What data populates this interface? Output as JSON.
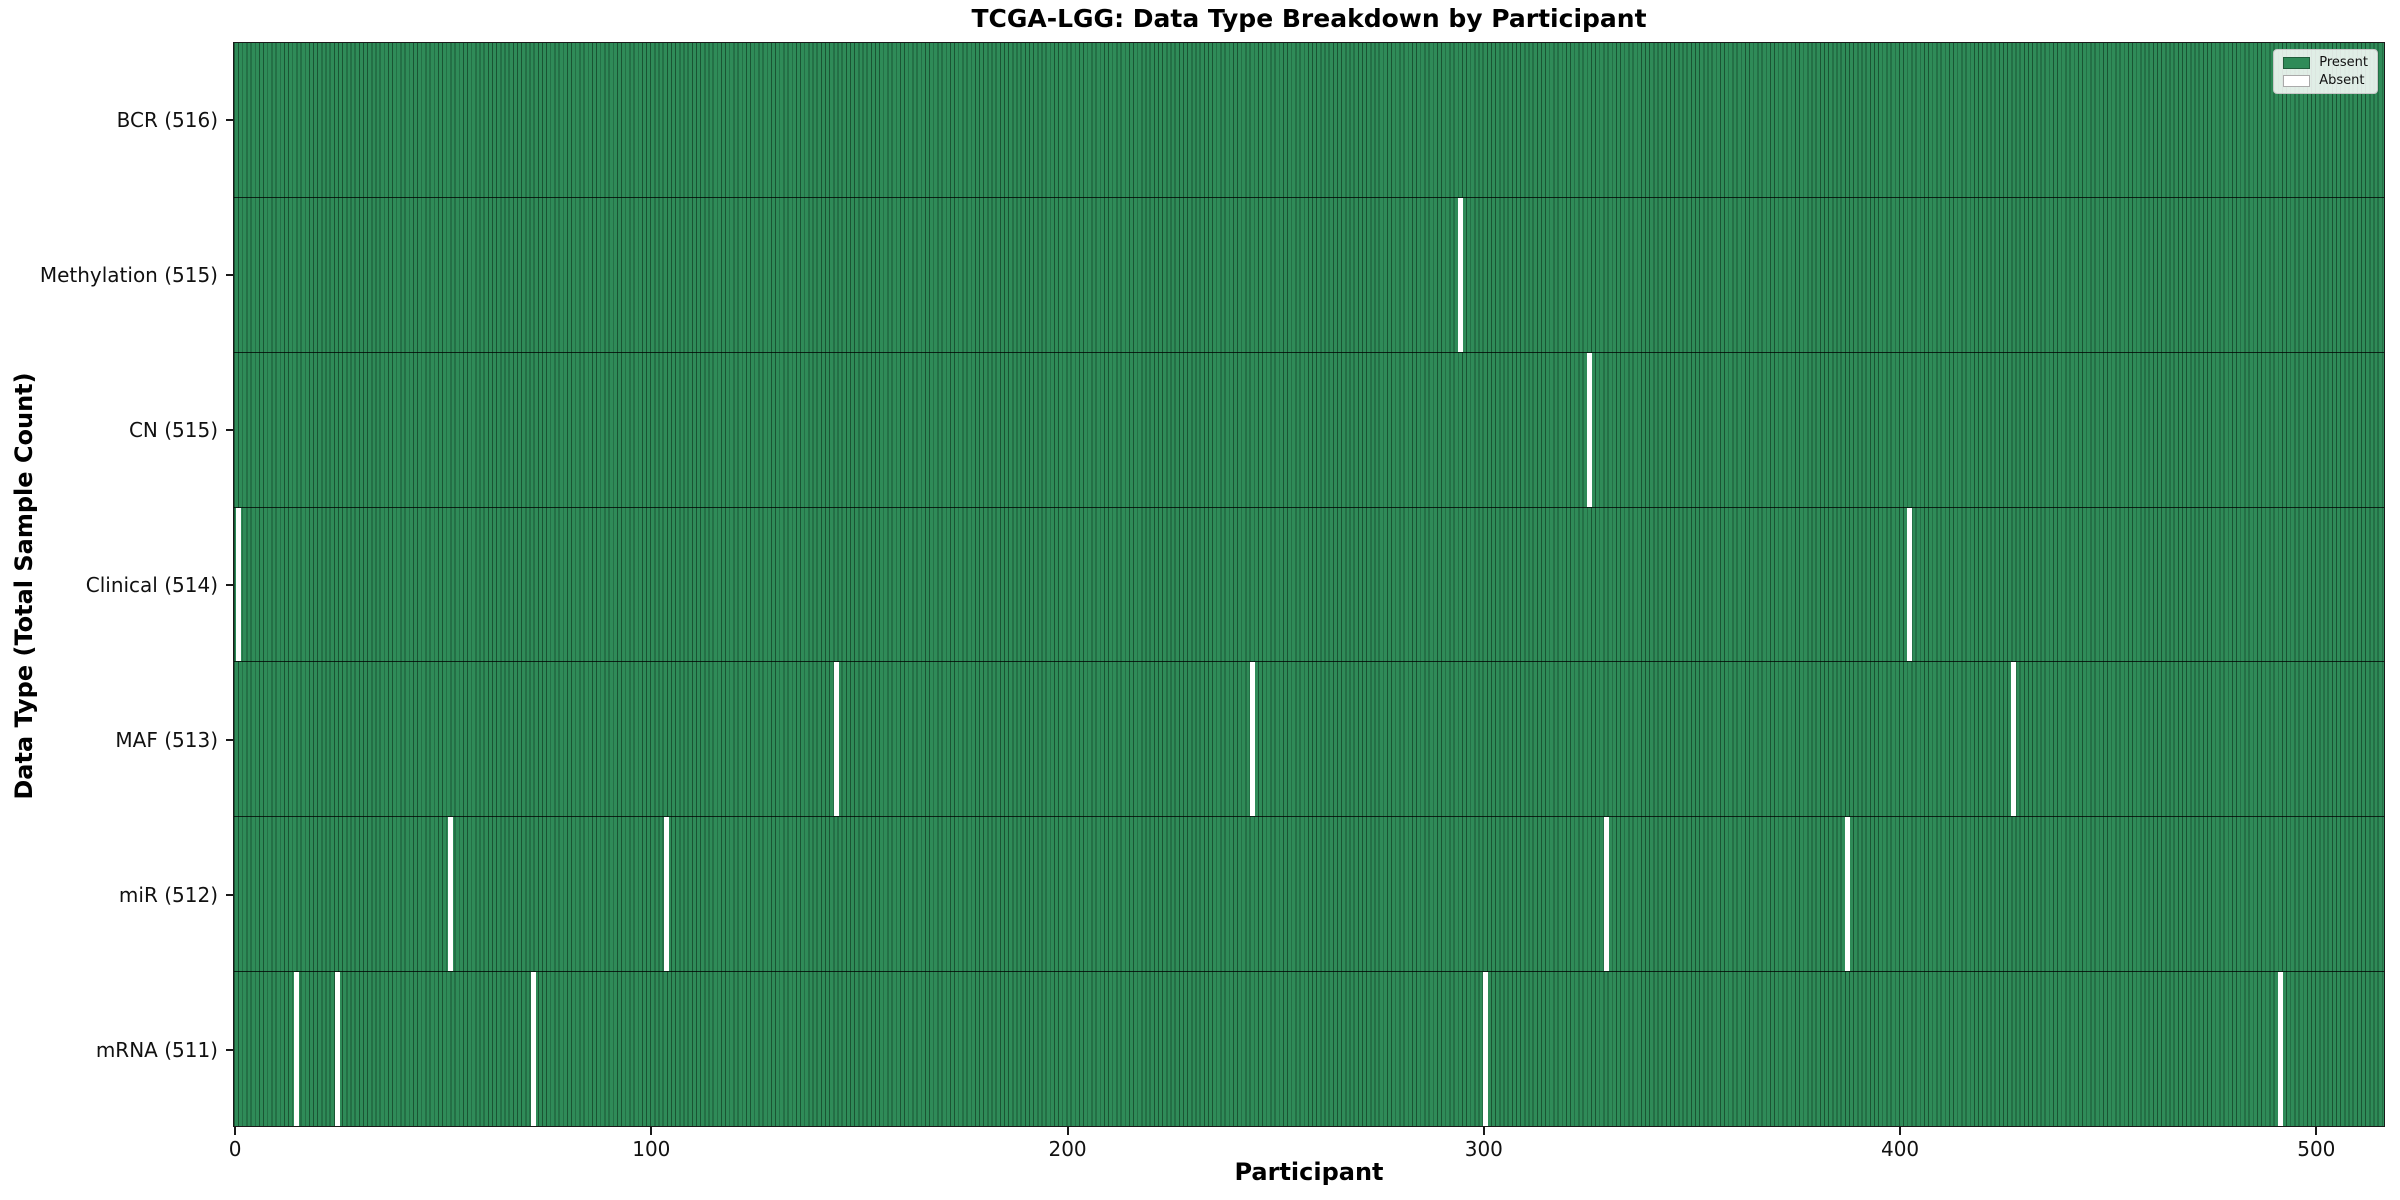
{
  "figure": {
    "colors": {
      "present": "#2E8B57",
      "absent": "#FFFFFF",
      "bar_edge": "#0E3D23",
      "background": "#FFFFFF"
    }
  },
  "chart_data": {
    "type": "heatmap",
    "title": "TCGA-LGG: Data Type Breakdown by Participant",
    "xlabel": "Participant",
    "ylabel": "Data Type (Total Sample Count)",
    "n_participants": 516,
    "x_axis_range": [
      -0.5,
      516.5
    ],
    "x_ticks": [
      0,
      100,
      200,
      300,
      400,
      500
    ],
    "grid": false,
    "legend_position": "upper right",
    "legend": [
      {
        "label": "Present",
        "color": "#2E8B57"
      },
      {
        "label": "Absent",
        "color": "#FFFFFF"
      }
    ],
    "rows": [
      {
        "label": "BCR (516)",
        "data_type": "BCR",
        "present_count": 516,
        "absent_participants": []
      },
      {
        "label": "Methylation (515)",
        "data_type": "Methylation",
        "present_count": 515,
        "absent_participants": [
          294
        ]
      },
      {
        "label": "CN (515)",
        "data_type": "CN",
        "present_count": 515,
        "absent_participants": [
          325
        ]
      },
      {
        "label": "Clinical (514)",
        "data_type": "Clinical",
        "present_count": 514,
        "absent_participants": [
          0,
          402
        ]
      },
      {
        "label": "MAF (513)",
        "data_type": "MAF",
        "present_count": 513,
        "absent_participants": [
          144,
          244,
          427
        ]
      },
      {
        "label": "miR (512)",
        "data_type": "miR",
        "present_count": 512,
        "absent_participants": [
          51,
          103,
          329,
          387
        ]
      },
      {
        "label": "mRNA (511)",
        "data_type": "mRNA",
        "present_count": 511,
        "absent_participants": [
          14,
          24,
          71,
          300,
          491
        ]
      }
    ]
  }
}
